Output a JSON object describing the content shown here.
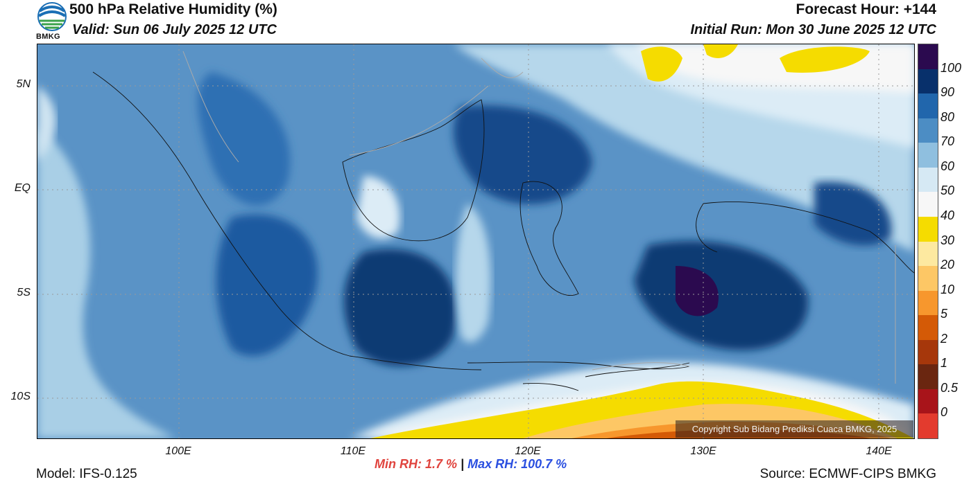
{
  "header": {
    "title": "500 hPa Relative Humidity (%)",
    "valid": "Valid: Sun 06 July 2025 12 UTC",
    "forecast_hour": "Forecast Hour: +144",
    "initial_run": "Initial Run: Mon 30 June 2025 12 UTC",
    "logo_text": "BMKG"
  },
  "axes": {
    "lat_labels": [
      "5N",
      "EQ",
      "5S",
      "10S"
    ],
    "lon_labels": [
      "100E",
      "110E",
      "120E",
      "130E",
      "140E"
    ]
  },
  "colorbar": {
    "labels": [
      "100",
      "90",
      "80",
      "70",
      "60",
      "50",
      "40",
      "30",
      "20",
      "10",
      "5",
      "2",
      "1",
      "0.5",
      "0"
    ],
    "colors": [
      "#2b0a4f",
      "#08306b",
      "#2166ac",
      "#4c8dc4",
      "#8fbfdf",
      "#d6e9f4",
      "#f7f7f7",
      "#f5dc00",
      "#fde9a0",
      "#fdc765",
      "#f7972d",
      "#d45a06",
      "#a6370b",
      "#6a2610",
      "#a8141a",
      "#e33b2e"
    ]
  },
  "stats": {
    "min_label": "Min RH:",
    "min_value": "1.7 %",
    "separator": "|",
    "max_label": "Max RH: 100.7 %"
  },
  "footer": {
    "model": "Model: IFS-0.125",
    "source": "Source: ECMWF-CIPS BMKG",
    "copyright": "Copyright Sub Bidang Prediksi Cuaca BMKG, 2025"
  }
}
